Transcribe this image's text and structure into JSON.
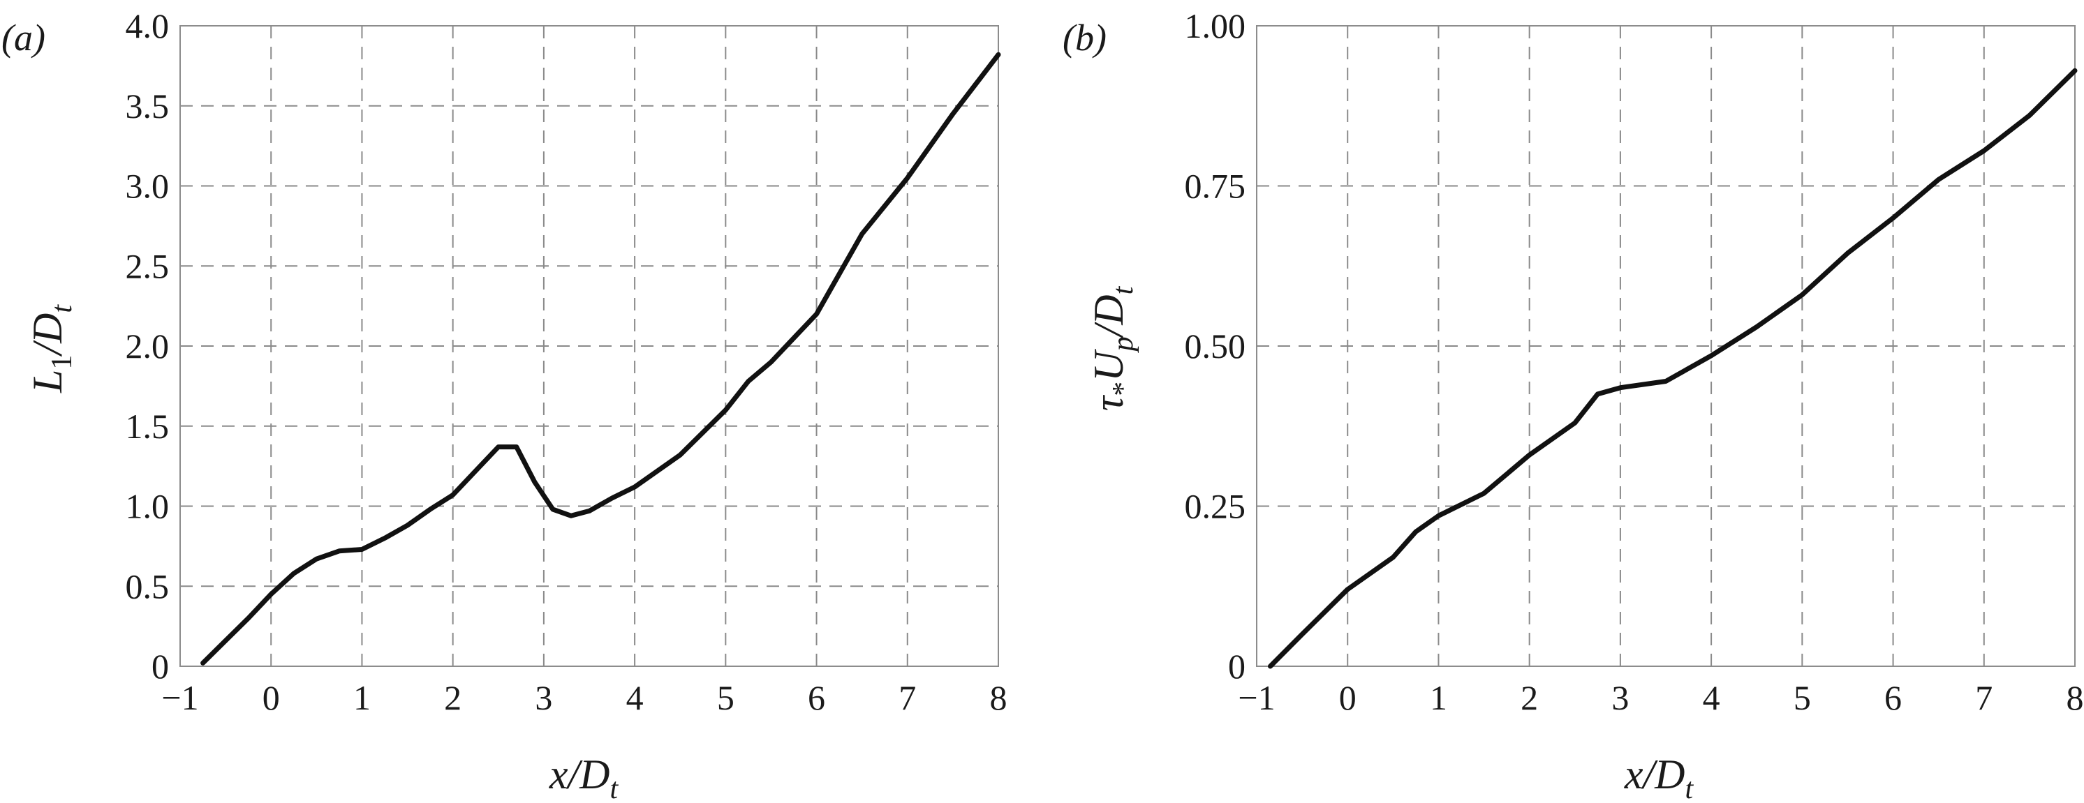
{
  "chart_data": [
    {
      "type": "line",
      "panel_label": "(a)",
      "xlabel": "x/D_t",
      "ylabel": "L_1/D_t",
      "xlim": [
        -1,
        8
      ],
      "ylim": [
        0,
        4
      ],
      "grid": true,
      "x_ticks": [
        "−1",
        "0",
        "1",
        "2",
        "3",
        "4",
        "5",
        "6",
        "7",
        "8"
      ],
      "x_tick_values": [
        -1,
        0,
        1,
        2,
        3,
        4,
        5,
        6,
        7,
        8
      ],
      "y_ticks": [
        "0",
        "0.5",
        "1.0",
        "1.5",
        "2.0",
        "2.5",
        "3.0",
        "3.5",
        "4.0"
      ],
      "y_tick_values": [
        0,
        0.5,
        1.0,
        1.5,
        2.0,
        2.5,
        3.0,
        3.5,
        4.0
      ],
      "series": [
        {
          "x": [
            -0.75,
            -0.5,
            -0.25,
            0,
            0.25,
            0.5,
            0.75,
            1.0,
            1.25,
            1.5,
            1.75,
            2.0,
            2.25,
            2.5,
            2.7,
            2.9,
            3.1,
            3.3,
            3.5,
            3.75,
            4.0,
            4.5,
            5.0,
            5.25,
            5.5,
            6.0,
            6.5,
            7.0,
            7.5,
            8.0
          ],
          "y": [
            0.02,
            0.16,
            0.3,
            0.45,
            0.58,
            0.67,
            0.72,
            0.73,
            0.8,
            0.88,
            0.98,
            1.07,
            1.22,
            1.37,
            1.37,
            1.15,
            0.98,
            0.94,
            0.97,
            1.05,
            1.12,
            1.32,
            1.6,
            1.78,
            1.9,
            2.2,
            2.7,
            3.05,
            3.45,
            3.82
          ]
        }
      ]
    },
    {
      "type": "line",
      "panel_label": "(b)",
      "xlabel": "x/D_t",
      "ylabel": "τ_* U_p/D_t",
      "xlim": [
        -1,
        8
      ],
      "ylim": [
        0,
        1
      ],
      "grid": true,
      "x_ticks": [
        "−1",
        "0",
        "1",
        "2",
        "3",
        "4",
        "5",
        "6",
        "7",
        "8"
      ],
      "x_tick_values": [
        -1,
        0,
        1,
        2,
        3,
        4,
        5,
        6,
        7,
        8
      ],
      "y_ticks": [
        "0",
        "0.25",
        "0.50",
        "0.75",
        "1.00"
      ],
      "y_tick_values": [
        0,
        0.25,
        0.5,
        0.75,
        1.0
      ],
      "series": [
        {
          "x": [
            -0.85,
            -0.5,
            0,
            0.5,
            0.75,
            1.0,
            1.5,
            2.0,
            2.5,
            2.75,
            3.0,
            3.5,
            4.0,
            4.5,
            5.0,
            5.5,
            6.0,
            6.5,
            7.0,
            7.5,
            8.0
          ],
          "y": [
            0.0,
            0.05,
            0.12,
            0.17,
            0.21,
            0.235,
            0.27,
            0.33,
            0.38,
            0.425,
            0.435,
            0.445,
            0.485,
            0.53,
            0.58,
            0.645,
            0.7,
            0.76,
            0.805,
            0.86,
            0.93
          ]
        }
      ]
    }
  ]
}
